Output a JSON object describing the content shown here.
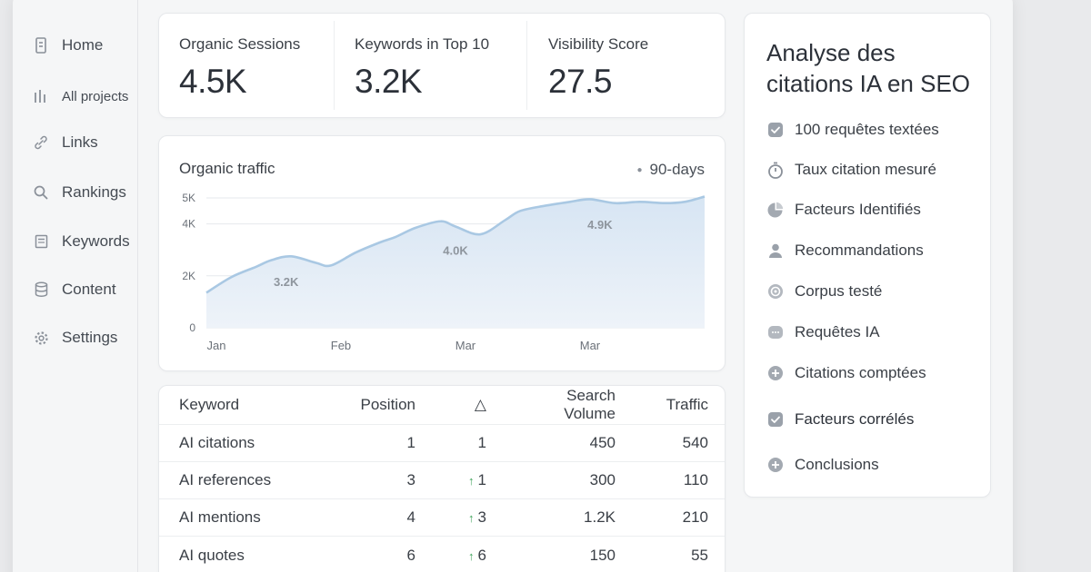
{
  "sidebar": {
    "items": [
      {
        "label": "Home",
        "icon": "home-icon"
      },
      {
        "label": "All projects",
        "icon": "bar-chart-icon"
      },
      {
        "label": "Links",
        "icon": "link-icon"
      },
      {
        "label": "Rankings",
        "icon": "search-icon"
      },
      {
        "label": "Keywords",
        "icon": "document-icon"
      },
      {
        "label": "Content",
        "icon": "database-icon"
      },
      {
        "label": "Settings",
        "icon": "gear-icon"
      }
    ]
  },
  "stats": [
    {
      "label": "Organic Sessions",
      "value": "4.5K"
    },
    {
      "label": "Keywords in Top 10",
      "value": "3.2K"
    },
    {
      "label": "Visibility Score",
      "value": "27.5"
    }
  ],
  "chart": {
    "title": "Organic traffic",
    "range": "90-days",
    "accent": "#a9c8e3"
  },
  "chart_data": {
    "type": "area",
    "title": "Organic traffic",
    "x_ticks": [
      "Jan",
      "Feb",
      "Mar",
      "Mar"
    ],
    "y_ticks": [
      "0",
      "2K",
      "4K",
      "5K"
    ],
    "y_tick_values": [
      0,
      2000,
      4000,
      5000
    ],
    "ylim": [
      0,
      5000
    ],
    "x": [
      0,
      0.05,
      0.1,
      0.13,
      0.17,
      0.22,
      0.25,
      0.3,
      0.35,
      0.38,
      0.42,
      0.47,
      0.5,
      0.55,
      0.6,
      0.63,
      0.68,
      0.73,
      0.77,
      0.82,
      0.87,
      0.92,
      0.96,
      1
    ],
    "values": [
      1350,
      1950,
      2350,
      2600,
      2750,
      2500,
      2400,
      2900,
      3300,
      3500,
      3850,
      4100,
      3900,
      3600,
      4150,
      4500,
      4700,
      4850,
      4950,
      4800,
      4850,
      4800,
      4850,
      5050
    ],
    "data_labels": [
      {
        "text": "3.2K",
        "x": 0.16,
        "y": 1750
      },
      {
        "text": "4.0K",
        "x": 0.5,
        "y": 2950
      },
      {
        "text": "4.9K",
        "x": 0.79,
        "y": 3950
      }
    ],
    "grid": true
  },
  "table": {
    "headers": [
      "Keyword",
      "Position",
      "△",
      "Search Volume",
      "Traffic"
    ],
    "rows": [
      {
        "keyword": "AI citations",
        "position": "1",
        "delta": "1",
        "up": false,
        "volume": "450",
        "traffic": "540"
      },
      {
        "keyword": "AI references",
        "position": "3",
        "delta": "1",
        "up": true,
        "volume": "300",
        "traffic": "110"
      },
      {
        "keyword": "AI mentions",
        "position": "4",
        "delta": "3",
        "up": true,
        "volume": "1.2K",
        "traffic": "210"
      },
      {
        "keyword": "AI quotes",
        "position": "6",
        "delta": "6",
        "up": true,
        "volume": "150",
        "traffic": "55"
      }
    ]
  },
  "panel": {
    "title": "Analyse des citations IA en SEO",
    "items": [
      {
        "label": "100 requêtes textées",
        "icon": "check-icon"
      },
      {
        "label": "Taux citation mesuré",
        "icon": "stopwatch-icon"
      },
      {
        "label": "Facteurs Identifiés",
        "icon": "pie-chart-icon"
      },
      {
        "label": "Recommandations",
        "icon": "user-icon"
      },
      {
        "label": "Corpus testé",
        "icon": "target-icon"
      },
      {
        "label": "Requêtes IA",
        "icon": "chat-icon"
      },
      {
        "label": "Citations comptées",
        "icon": "plus-icon"
      },
      {
        "label": "Facteurs corrélés",
        "icon": "check-icon"
      },
      {
        "label": "Conclusions",
        "icon": "plus-icon"
      }
    ]
  }
}
